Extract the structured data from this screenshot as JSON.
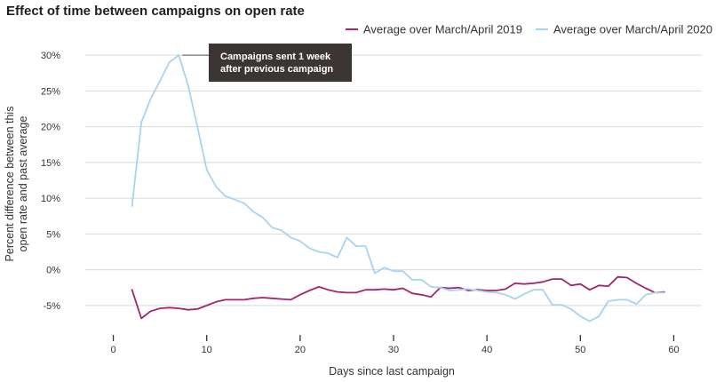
{
  "chart_data": {
    "type": "line",
    "title": "Effect of time between campaigns on open rate",
    "xlabel": "Days since last campaign",
    "ylabel_lines": [
      "Percent difference between this",
      "open rate and past average"
    ],
    "xlim": [
      -3,
      63
    ],
    "ylim": [
      -7.5,
      31.5
    ],
    "xticks": [
      0,
      10,
      20,
      30,
      40,
      50,
      60
    ],
    "yticks": [
      -5,
      0,
      5,
      10,
      15,
      20,
      25,
      30
    ],
    "ytick_labels": [
      "-5%",
      "0%",
      "5%",
      "10%",
      "15%",
      "20%",
      "25%",
      "30%"
    ],
    "grid": "horizontal",
    "legend": "top-right",
    "annotation": {
      "lines": [
        "Campaigns sent 1 week",
        "after previous campaign"
      ],
      "x": 7,
      "y": 30
    },
    "series": [
      {
        "name": "Average over March/April 2019",
        "color": "#a0266e",
        "x": [
          2,
          3,
          4,
          5,
          6,
          7,
          8,
          9,
          10,
          11,
          12,
          13,
          14,
          15,
          16,
          17,
          18,
          19,
          20,
          21,
          22,
          23,
          24,
          25,
          26,
          27,
          28,
          29,
          30,
          31,
          32,
          33,
          34,
          35,
          36,
          37,
          38,
          39,
          40,
          41,
          42,
          43,
          44,
          45,
          46,
          47,
          48,
          49,
          50,
          51,
          52,
          53,
          54,
          55,
          56,
          57,
          58,
          59
        ],
        "y": [
          -2.8,
          -6.8,
          -5.8,
          -5.4,
          -5.3,
          -5.4,
          -5.6,
          -5.5,
          -5.0,
          -4.5,
          -4.2,
          -4.2,
          -4.2,
          -4.0,
          -3.9,
          -4.0,
          -4.1,
          -4.2,
          -3.5,
          -2.9,
          -2.4,
          -2.8,
          -3.1,
          -3.2,
          -3.2,
          -2.8,
          -2.8,
          -2.7,
          -2.8,
          -2.6,
          -3.3,
          -3.5,
          -3.8,
          -2.5,
          -2.6,
          -2.5,
          -2.9,
          -2.8,
          -2.9,
          -2.9,
          -2.7,
          -1.9,
          -2.0,
          -1.9,
          -1.7,
          -1.3,
          -1.3,
          -2.2,
          -2.0,
          -2.8,
          -2.2,
          -2.3,
          -1.0,
          -1.1,
          -1.9,
          -2.6,
          -3.2,
          -3.1
        ]
      },
      {
        "name": "Average over March/April 2020",
        "color": "#a8d3ef",
        "x": [
          2,
          3,
          4,
          5,
          6,
          7,
          8,
          9,
          10,
          11,
          12,
          13,
          14,
          15,
          16,
          17,
          18,
          19,
          20,
          21,
          22,
          23,
          24,
          25,
          26,
          27,
          28,
          29,
          30,
          31,
          32,
          33,
          34,
          35,
          36,
          37,
          38,
          39,
          40,
          41,
          42,
          43,
          44,
          45,
          46,
          47,
          48,
          49,
          50,
          51,
          52,
          53,
          54,
          55,
          56,
          57,
          58,
          59
        ],
        "y": [
          8.9,
          20.6,
          23.9,
          26.4,
          29.0,
          30.0,
          25.8,
          20.0,
          14.0,
          11.6,
          10.3,
          9.8,
          9.3,
          8.1,
          7.3,
          5.9,
          5.5,
          4.5,
          4.0,
          3.0,
          2.5,
          2.3,
          1.7,
          4.5,
          3.3,
          3.3,
          -0.5,
          0.3,
          -0.2,
          -0.2,
          -1.4,
          -1.4,
          -2.4,
          -2.5,
          -2.9,
          -2.8,
          -2.7,
          -2.9,
          -3.1,
          -3.2,
          -3.5,
          -4.1,
          -3.4,
          -2.8,
          -2.8,
          -4.9,
          -4.9,
          -5.5,
          -6.5,
          -7.2,
          -6.5,
          -4.4,
          -4.2,
          -4.2,
          -4.8,
          -3.5,
          -3.2,
          -3.2
        ]
      }
    ]
  }
}
